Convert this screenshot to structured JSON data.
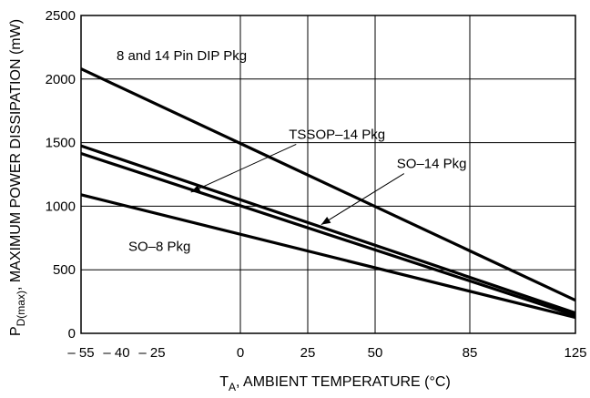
{
  "chart_data": {
    "type": "line",
    "title": "",
    "xlabel": {
      "main": "T",
      "sub": "A",
      "rest": ", AMBIENT TEMPERATURE (°C)"
    },
    "ylabel": {
      "main": "P",
      "sub": "D(max)",
      "rest": ", MAXIMUM POWER DISSIPATION (mW)"
    },
    "xlim": [
      -55,
      125
    ],
    "ylim": [
      0,
      2500
    ],
    "grid": true,
    "x_ticks": [
      -55,
      -40,
      -25,
      0,
      25,
      50,
      85,
      125
    ],
    "x_tick_labels": [
      "– 55",
      "– 40",
      "– 25",
      "0",
      "25",
      "50",
      "85",
      "125"
    ],
    "y_ticks": [
      0,
      500,
      1000,
      1500,
      2000,
      2500
    ],
    "y_tick_labels": [
      "0",
      "500",
      "1000",
      "1500",
      "2000",
      "2500"
    ],
    "series": [
      {
        "name": "8 and 14 Pin DIP Pkg",
        "x": [
          -55,
          125
        ],
        "y": [
          2080,
          260
        ]
      },
      {
        "name": "TSSOP-14 Pkg",
        "x": [
          -55,
          125
        ],
        "y": [
          1475,
          160
        ]
      },
      {
        "name": "SO-14 Pkg",
        "x": [
          -55,
          125
        ],
        "y": [
          1415,
          140
        ]
      },
      {
        "name": "SO-8 Pkg",
        "x": [
          -55,
          125
        ],
        "y": [
          1090,
          125
        ]
      }
    ],
    "annotations": [
      {
        "text": "8 and 14 Pin DIP Pkg",
        "at": [
          -40,
          2150
        ]
      },
      {
        "text": "TSSOP–14 Pkg",
        "at": [
          18,
          1530
        ],
        "arrow_to": [
          -14,
          1110
        ]
      },
      {
        "text": "SO–14 Pkg",
        "at": [
          58,
          1300
        ],
        "arrow_to": [
          30,
          855
        ]
      },
      {
        "text": "SO–8 Pkg",
        "at": [
          -35,
          650
        ]
      }
    ]
  }
}
